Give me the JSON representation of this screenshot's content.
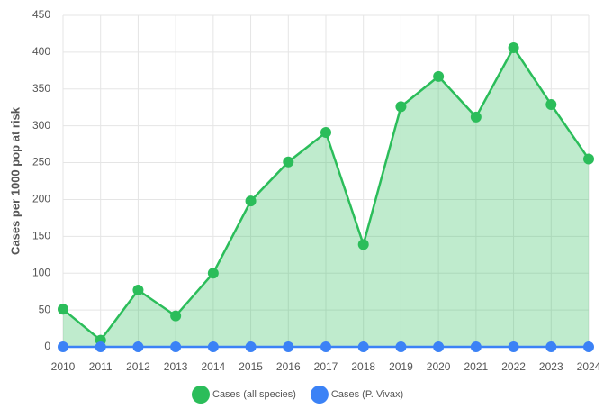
{
  "chart_data": {
    "type": "area",
    "ylabel": "Cases per 1000 pop at risk",
    "categories": [
      "2010",
      "2011",
      "2012",
      "2013",
      "2014",
      "2015",
      "2016",
      "2017",
      "2018",
      "2019",
      "2020",
      "2021",
      "2022",
      "2023",
      "2024"
    ],
    "series": [
      {
        "name": "Cases (all species)",
        "color": "#2bbd5a",
        "fill": true,
        "values": [
          51,
          9,
          77,
          42,
          100,
          198,
          251,
          291,
          139,
          326,
          367,
          312,
          406,
          329,
          255
        ]
      },
      {
        "name": "Cases (P. Vivax)",
        "color": "#3b82f6",
        "fill": false,
        "values": [
          0,
          0,
          0,
          0,
          0,
          0,
          0,
          0,
          0,
          0,
          0,
          0,
          0,
          0,
          0
        ]
      }
    ],
    "ylim": [
      0,
      450
    ],
    "yticks": [
      0,
      50,
      100,
      150,
      200,
      250,
      300,
      350,
      400,
      450
    ],
    "grid": true,
    "legend": "bottom"
  }
}
